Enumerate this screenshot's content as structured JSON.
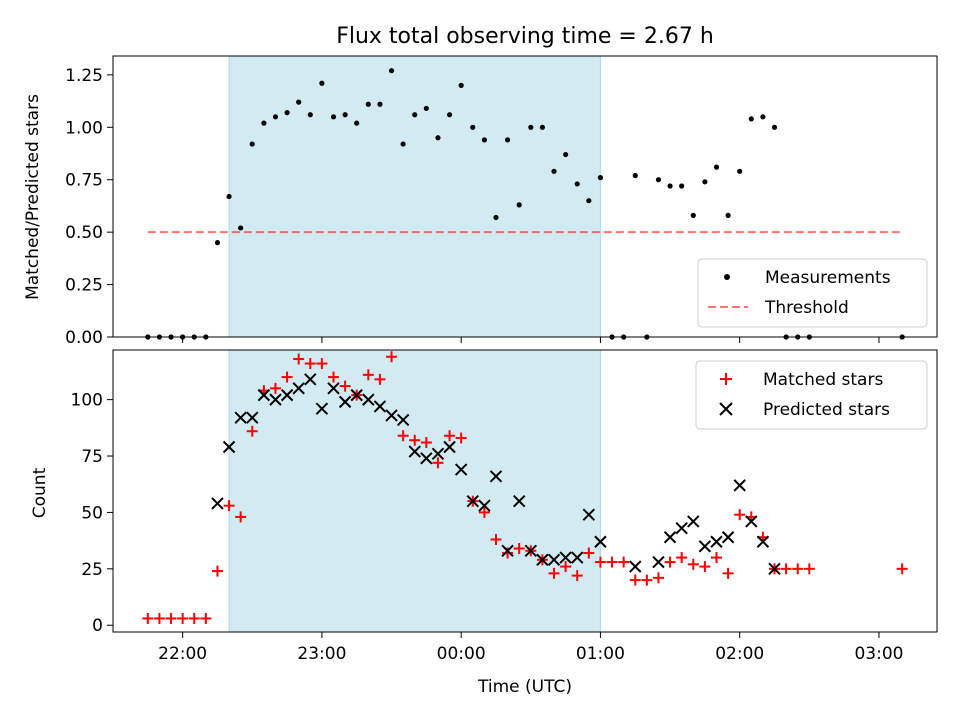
{
  "chart_data": [
    {
      "type": "scatter",
      "title": "Flux total observing time = 2.67 h",
      "xlabel": "",
      "ylabel": "Matched/Predicted stars",
      "x_unit": "hours (UTC, continuing past midnight)",
      "xlim": [
        "21:30",
        "03:25"
      ],
      "ylim": [
        0,
        1.34
      ],
      "yticks": [
        "0.00",
        "0.25",
        "0.50",
        "0.75",
        "1.00",
        "1.25"
      ],
      "legend": "lower-right",
      "legend_entries": [
        "Measurements",
        "Threshold"
      ],
      "shaded_region": {
        "from": "22:20",
        "to": "01:00",
        "color": "#add8e6"
      },
      "colors": {
        "points": "#000000",
        "threshold": "#ff0000",
        "shade": "#add8e6"
      },
      "threshold": {
        "y": 0.5,
        "from": "21:45",
        "to": "03:10"
      },
      "series": [
        {
          "name": "Measurements",
          "x": [
            "21:45",
            "21:50",
            "21:55",
            "22:00",
            "22:05",
            "22:10",
            "22:15",
            "22:20",
            "22:25",
            "22:30",
            "22:35",
            "22:40",
            "22:45",
            "22:50",
            "22:55",
            "23:00",
            "23:05",
            "23:10",
            "23:15",
            "23:20",
            "23:25",
            "23:30",
            "23:35",
            "23:40",
            "23:45",
            "23:50",
            "23:55",
            "00:00",
            "00:05",
            "00:10",
            "00:15",
            "00:20",
            "00:25",
            "00:30",
            "00:35",
            "00:40",
            "00:45",
            "00:50",
            "00:55",
            "01:00",
            "01:05",
            "01:10",
            "01:15",
            "01:20",
            "01:25",
            "01:30",
            "01:35",
            "01:40",
            "01:45",
            "01:50",
            "01:55",
            "02:00",
            "02:05",
            "02:10",
            "02:15",
            "02:20",
            "02:25",
            "02:30",
            "03:10"
          ],
          "y": [
            0,
            0,
            0,
            0,
            0,
            0,
            0.45,
            0.67,
            0.52,
            0.92,
            1.02,
            1.05,
            1.07,
            1.12,
            1.06,
            1.21,
            1.05,
            1.06,
            1.02,
            1.11,
            1.11,
            1.27,
            0.92,
            1.06,
            1.09,
            0.95,
            1.06,
            1.2,
            1.0,
            0.94,
            0.57,
            0.94,
            0.63,
            1.0,
            1.0,
            0.79,
            0.87,
            0.73,
            0.65,
            0.76,
            0,
            0,
            0.77,
            0,
            0.75,
            0.72,
            0.72,
            0.58,
            0.74,
            0.81,
            0.58,
            0.79,
            1.04,
            1.05,
            1.0,
            0,
            0,
            0,
            0
          ]
        }
      ]
    },
    {
      "type": "scatter",
      "title": "",
      "xlabel": "Time (UTC)",
      "ylabel": "Count",
      "x_unit": "hours (UTC, continuing past midnight)",
      "xlim": [
        "21:30",
        "03:25"
      ],
      "xticks": [
        "22:00",
        "23:00",
        "00:00",
        "01:00",
        "02:00",
        "03:00"
      ],
      "ylim": [
        -3,
        122
      ],
      "yticks": [
        "0",
        "25",
        "50",
        "75",
        "100"
      ],
      "legend": "top-right",
      "legend_entries": [
        "Matched stars",
        "Predicted stars"
      ],
      "shaded_region": {
        "from": "22:20",
        "to": "01:00",
        "color": "#add8e6"
      },
      "colors": {
        "matched": "#ff0000",
        "predicted": "#000000",
        "shade": "#add8e6"
      },
      "series": [
        {
          "name": "Matched stars",
          "x": [
            "21:45",
            "21:50",
            "21:55",
            "22:00",
            "22:05",
            "22:10",
            "22:15",
            "22:20",
            "22:25",
            "22:30",
            "22:35",
            "22:40",
            "22:45",
            "22:50",
            "22:55",
            "23:00",
            "23:05",
            "23:10",
            "23:15",
            "23:20",
            "23:25",
            "23:30",
            "23:35",
            "23:40",
            "23:45",
            "23:50",
            "23:55",
            "00:00",
            "00:05",
            "00:10",
            "00:15",
            "00:20",
            "00:25",
            "00:30",
            "00:35",
            "00:40",
            "00:45",
            "00:50",
            "00:55",
            "01:00",
            "01:05",
            "01:10",
            "01:15",
            "01:20",
            "01:25",
            "01:30",
            "01:35",
            "01:40",
            "01:45",
            "01:50",
            "01:55",
            "02:00",
            "02:05",
            "02:10",
            "02:15",
            "02:20",
            "02:25",
            "02:30",
            "03:10"
          ],
          "y": [
            3,
            3,
            3,
            3,
            3,
            3,
            24,
            53,
            48,
            86,
            104,
            105,
            110,
            118,
            116,
            116,
            110,
            106,
            102,
            111,
            109,
            119,
            84,
            82,
            81,
            72,
            84,
            83,
            55,
            50,
            38,
            32,
            34,
            33,
            29,
            23,
            26,
            22,
            32,
            28,
            28,
            28,
            20,
            20,
            21,
            28,
            30,
            27,
            26,
            30,
            23,
            49,
            48,
            39,
            25,
            25,
            25,
            25,
            25
          ]
        },
        {
          "name": "Predicted stars",
          "x": [
            "22:15",
            "22:20",
            "22:25",
            "22:30",
            "22:35",
            "22:40",
            "22:45",
            "22:50",
            "22:55",
            "23:00",
            "23:05",
            "23:10",
            "23:15",
            "23:20",
            "23:25",
            "23:30",
            "23:35",
            "23:40",
            "23:45",
            "23:50",
            "23:55",
            "00:00",
            "00:05",
            "00:10",
            "00:15",
            "00:20",
            "00:25",
            "00:30",
            "00:35",
            "00:40",
            "00:45",
            "00:50",
            "00:55",
            "01:00",
            "01:15",
            "01:25",
            "01:30",
            "01:35",
            "01:40",
            "01:45",
            "01:50",
            "01:55",
            "02:00",
            "02:05",
            "02:10",
            "02:15"
          ],
          "y": [
            54,
            79,
            92,
            92,
            102,
            100,
            102,
            105,
            109,
            96,
            105,
            99,
            102,
            100,
            97,
            93,
            91,
            77,
            74,
            76,
            79,
            69,
            55,
            53,
            66,
            33,
            55,
            33,
            29,
            29,
            30,
            30,
            49,
            37,
            26,
            28,
            39,
            43,
            46,
            35,
            37,
            39,
            62,
            46,
            37,
            25
          ]
        }
      ]
    }
  ]
}
